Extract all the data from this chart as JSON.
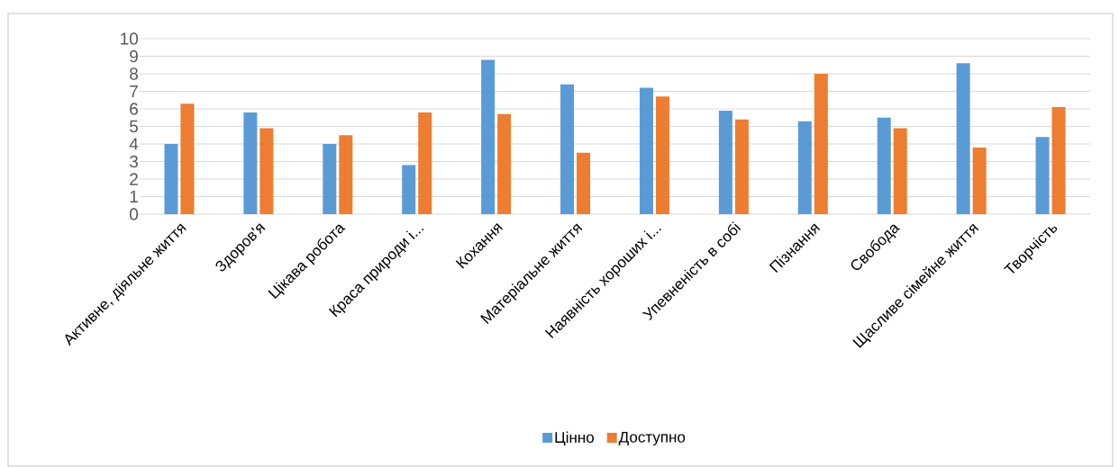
{
  "chart_data": {
    "type": "bar",
    "categories": [
      "Активне, діяльне життя",
      "Здоров'я",
      "Цікава робота",
      "Краса природи і...",
      "Кохання",
      "Матеріальне життя",
      "Наявність хороших і...",
      "Упевненість в собі",
      "Пізнання",
      "Свобода",
      "Щасливе сімейне життя",
      "Творчість"
    ],
    "series": [
      {
        "name": "Цінно",
        "color": "#5b9bd5",
        "values": [
          4.0,
          5.8,
          4.0,
          2.8,
          8.8,
          7.4,
          7.2,
          5.9,
          5.3,
          5.5,
          8.6,
          4.4
        ]
      },
      {
        "name": "Доступно",
        "color": "#ed7d31",
        "values": [
          6.3,
          4.9,
          4.5,
          5.8,
          5.7,
          3.5,
          6.7,
          5.4,
          8.0,
          4.9,
          3.8,
          6.1
        ]
      }
    ],
    "ylim": [
      0,
      10
    ],
    "yticks": [
      0,
      1,
      2,
      3,
      4,
      5,
      6,
      7,
      8,
      9,
      10
    ],
    "grid": "y",
    "legend": "bottom"
  }
}
